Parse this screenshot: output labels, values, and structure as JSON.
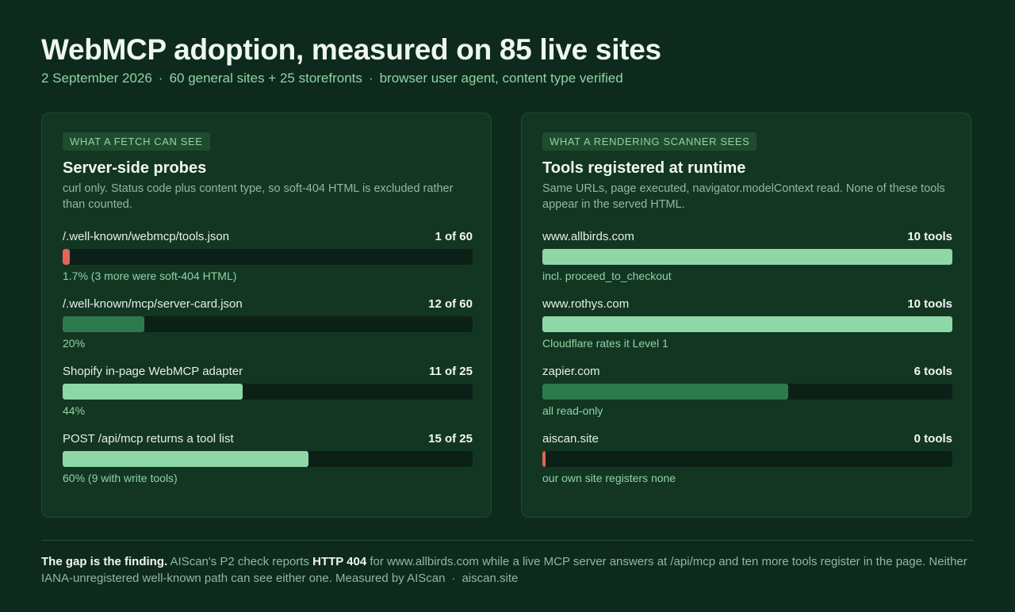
{
  "header": {
    "title": "WebMCP adoption, measured on 85 live sites",
    "subtitle_parts": [
      "2 September 2026",
      "60 general sites + 25 storefronts",
      "browser user agent, content type verified"
    ],
    "separator": "·"
  },
  "left_panel": {
    "badge": "WHAT A FETCH CAN SEE",
    "title": "Server-side probes",
    "description": "curl only. Status code plus content type, so soft-404 HTML is excluded rather than counted.",
    "rows": [
      {
        "label": "/.well-known/webmcp/tools.json",
        "value": "1 of 60",
        "fraction": 0.017,
        "color": "#e0645a",
        "note": "1.7%  (3 more were soft-404 HTML)"
      },
      {
        "label": "/.well-known/mcp/server-card.json",
        "value": "12 of 60",
        "fraction": 0.2,
        "color": "#2e7a4f",
        "note": "20%"
      },
      {
        "label": "Shopify in-page WebMCP adapter",
        "value": "11 of 25",
        "fraction": 0.44,
        "color": "#8ed8a8",
        "note": "44%"
      },
      {
        "label": "POST /api/mcp returns a tool list",
        "value": "15 of 25",
        "fraction": 0.6,
        "color": "#8ed8a8",
        "note": "60%  (9 with write tools)"
      }
    ]
  },
  "right_panel": {
    "badge": "WHAT A RENDERING SCANNER SEES",
    "title": "Tools registered at runtime",
    "description": "Same URLs, page executed, navigator.modelContext read. None of these tools appear in the served HTML.",
    "rows": [
      {
        "label": "www.allbirds.com",
        "value": "10 tools",
        "fraction": 1.0,
        "color": "#8ed8a8",
        "note": "incl. proceed_to_checkout"
      },
      {
        "label": "www.rothys.com",
        "value": "10 tools",
        "fraction": 1.0,
        "color": "#8ed8a8",
        "note": "Cloudflare rates it Level 1"
      },
      {
        "label": "zapier.com",
        "value": "6 tools",
        "fraction": 0.6,
        "color": "#2e7a4f",
        "note": "all read-only"
      },
      {
        "label": "aiscan.site",
        "value": "0 tools",
        "fraction": 0.0,
        "color": "#e0645a",
        "note": "our own site registers none"
      }
    ]
  },
  "footer": {
    "lead": "The gap is the finding.",
    "text_1": " AIScan's P2 check reports ",
    "highlight": "HTTP 404",
    "text_2": " for www.allbirds.com while a live MCP server answers at /api/mcp and ten more tools register in the page. Neither IANA-unregistered well-known path can see either one. Measured by AIScan",
    "separator": "·",
    "site": "aiscan.site"
  }
}
